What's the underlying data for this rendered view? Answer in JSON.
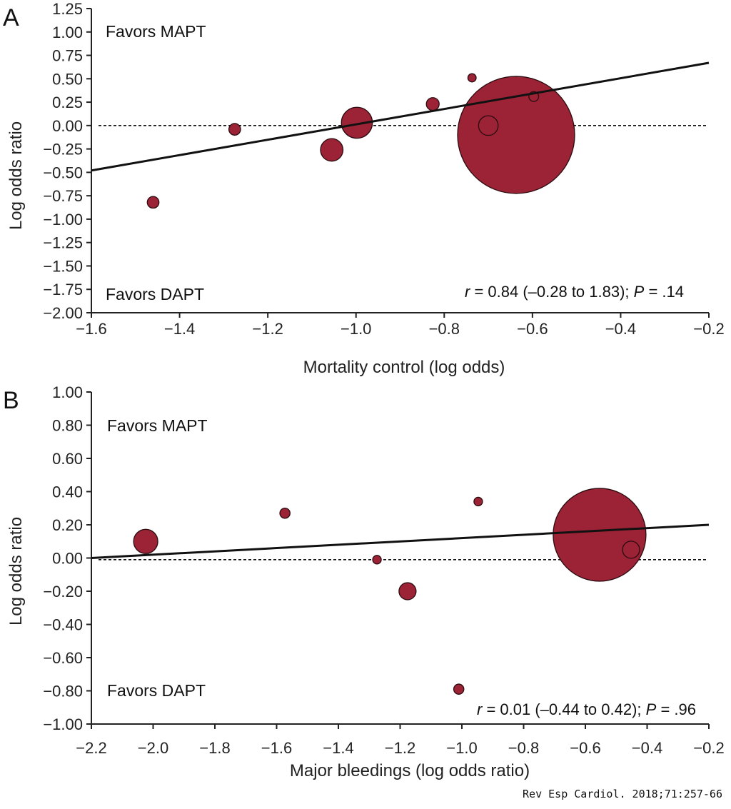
{
  "chart_data": [
    {
      "type": "scatter",
      "panel_label": "A",
      "xlabel": "Mortality control (log odds)",
      "ylabel": "Log odds ratio",
      "xlim": [
        -1.6,
        -0.2
      ],
      "ylim": [
        -2.0,
        1.25
      ],
      "xticks": [
        "−1.6",
        "−1.4",
        "−1.2",
        "−1.0",
        "−0.8",
        "−0.6",
        "−0.4",
        "−0.2"
      ],
      "xtick_values": [
        -1.6,
        -1.4,
        -1.2,
        -1.0,
        -0.8,
        -0.6,
        -0.4,
        -0.2
      ],
      "yticks": [
        "1.25",
        "1.00",
        "0.75",
        "0.50",
        "0.25",
        "0.00",
        "−0.25",
        "−0.50",
        "−0.75",
        "−1.00",
        "−1.25",
        "−1.50",
        "−1.75",
        "−2.00"
      ],
      "ytick_values": [
        1.25,
        1.0,
        0.75,
        0.5,
        0.25,
        0,
        -0.25,
        -0.5,
        -0.75,
        -1.0,
        -1.25,
        -1.5,
        -1.75,
        -2.0
      ],
      "grid": false,
      "favors_top": "Favors MAPT",
      "favors_bottom": "Favors DAPT",
      "stat": {
        "r_symbol": "r",
        "r_text": " = 0.84 (–0.28 to 1.83); ",
        "p_symbol": "P",
        "p_text": " = .14"
      },
      "points": [
        {
          "x": -1.46,
          "y": -0.82,
          "weight": 1.0
        },
        {
          "x": -1.275,
          "y": -0.04,
          "weight": 1.0
        },
        {
          "x": -1.055,
          "y": -0.26,
          "weight": 3.7
        },
        {
          "x": -0.998,
          "y": 0.03,
          "weight": 7.0
        },
        {
          "x": -0.826,
          "y": 0.23,
          "weight": 1.2
        },
        {
          "x": -0.737,
          "y": 0.51,
          "weight": 0.5
        },
        {
          "x": -0.637,
          "y": -0.1,
          "weight": 100
        }
      ],
      "open_points": [
        {
          "x": -0.7,
          "y": 0.0,
          "weight": 2.8
        },
        {
          "x": -0.597,
          "y": 0.31,
          "weight": 0.7
        }
      ],
      "regression_line": [
        [
          -1.6,
          -0.48
        ],
        [
          -0.2,
          0.67
        ]
      ],
      "reference_line_y": 0,
      "point_color": "#9b2335"
    },
    {
      "type": "scatter",
      "panel_label": "B",
      "xlabel": "Major bleedings (log odds ratio)",
      "ylabel": "Log odds ratio",
      "xlim": [
        -2.2,
        -0.2
      ],
      "ylim": [
        -1.0,
        1.0
      ],
      "xticks": [
        "−2.2",
        "−2.0",
        "−1.8",
        "−1.6",
        "−1.4",
        "−1.2",
        "−1.0",
        "−0.8",
        "−0.6",
        "−0.4",
        "−0.2"
      ],
      "xtick_values": [
        -2.2,
        -2.0,
        -1.8,
        -1.6,
        -1.4,
        -1.2,
        -1.0,
        -0.8,
        -0.6,
        -0.4,
        -0.2
      ],
      "yticks": [
        "1.00",
        "0.80",
        "0.60",
        "0.40",
        "0.20",
        "0.00",
        "−0.20",
        "−0.40",
        "−0.60",
        "−0.80",
        "−1.00"
      ],
      "ytick_values": [
        1.0,
        0.8,
        0.6,
        0.4,
        0.2,
        0,
        -0.2,
        -0.4,
        -0.6,
        -0.8,
        -1.0
      ],
      "grid": false,
      "favors_top": "Favors MAPT",
      "favors_bottom": "Favors DAPT",
      "stat": {
        "r_symbol": "r",
        "r_text": " = 0.01 (–0.44 to 0.42); ",
        "p_symbol": "P",
        "p_text": " = .96"
      },
      "points": [
        {
          "x": -2.024,
          "y": 0.1,
          "weight": 6.8
        },
        {
          "x": -1.573,
          "y": 0.27,
          "weight": 1.2
        },
        {
          "x": -1.275,
          "y": -0.01,
          "weight": 0.85
        },
        {
          "x": -1.176,
          "y": -0.2,
          "weight": 3.4
        },
        {
          "x": -0.947,
          "y": 0.34,
          "weight": 0.85
        },
        {
          "x": -1.01,
          "y": -0.79,
          "weight": 1.2
        },
        {
          "x": -0.554,
          "y": 0.14,
          "weight": 100
        }
      ],
      "open_points": [
        {
          "x": -0.452,
          "y": 0.05,
          "weight": 3.4
        }
      ],
      "regression_line": [
        [
          -2.2,
          0.0
        ],
        [
          -0.2,
          0.2
        ]
      ],
      "reference_line_y": -0.01,
      "point_color": "#9b2335"
    }
  ],
  "citation": "Rev Esp Cardiol. 2018;71:257-66"
}
